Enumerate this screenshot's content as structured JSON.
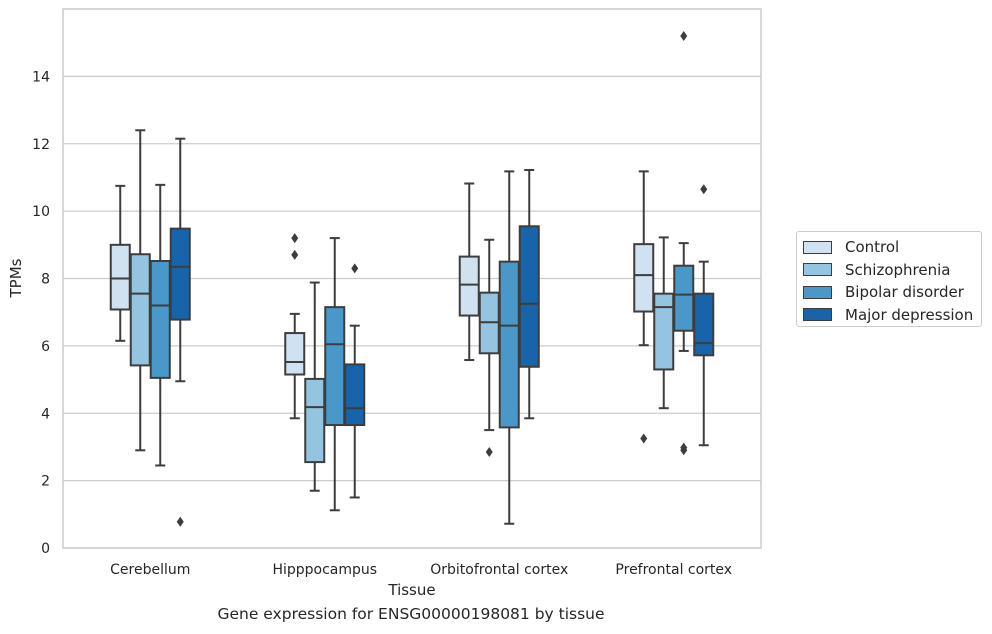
{
  "caption": "Gene expression for ENSG00000198081 by tissue",
  "chart_data": {
    "type": "box",
    "xlabel": "Tissue",
    "ylabel": "TPMs",
    "ylim": [
      0,
      16
    ],
    "yticks": [
      0,
      2,
      4,
      6,
      8,
      10,
      12,
      14
    ],
    "grid": true,
    "legend_position": "right",
    "categories": [
      "Cerebellum",
      "Hipppocampus",
      "Orbitofrontal cortex",
      "Prefrontal cortex"
    ],
    "series": [
      {
        "name": "Control",
        "color": "#d0e1f2",
        "boxes": [
          {
            "whislo": 6.15,
            "q1": 7.08,
            "med": 8.0,
            "q3": 9.0,
            "whishi": 10.75,
            "fliers": []
          },
          {
            "whislo": 3.85,
            "q1": 5.15,
            "med": 5.52,
            "q3": 6.38,
            "whishi": 6.95,
            "fliers": [
              8.7,
              9.2
            ]
          },
          {
            "whislo": 5.58,
            "q1": 6.9,
            "med": 7.82,
            "q3": 8.65,
            "whishi": 10.82,
            "fliers": []
          },
          {
            "whislo": 6.02,
            "q1": 7.02,
            "med": 8.1,
            "q3": 9.02,
            "whishi": 11.18,
            "fliers": [
              3.25
            ]
          }
        ]
      },
      {
        "name": "Schizophrenia",
        "color": "#94c4df",
        "boxes": [
          {
            "whislo": 2.9,
            "q1": 5.42,
            "med": 7.55,
            "q3": 8.72,
            "whishi": 12.4,
            "fliers": []
          },
          {
            "whislo": 1.7,
            "q1": 2.55,
            "med": 4.18,
            "q3": 5.02,
            "whishi": 7.88,
            "fliers": []
          },
          {
            "whislo": 3.5,
            "q1": 5.78,
            "med": 6.7,
            "q3": 7.58,
            "whishi": 9.15,
            "fliers": [
              2.85
            ]
          },
          {
            "whislo": 4.15,
            "q1": 5.3,
            "med": 7.15,
            "q3": 7.55,
            "whishi": 9.22,
            "fliers": []
          }
        ]
      },
      {
        "name": "Bipolar disorder",
        "color": "#4a98c9",
        "boxes": [
          {
            "whislo": 2.45,
            "q1": 5.05,
            "med": 7.2,
            "q3": 8.52,
            "whishi": 10.78,
            "fliers": []
          },
          {
            "whislo": 1.12,
            "q1": 3.65,
            "med": 6.05,
            "q3": 7.15,
            "whishi": 9.2,
            "fliers": []
          },
          {
            "whislo": 0.72,
            "q1": 3.58,
            "med": 6.6,
            "q3": 8.5,
            "whishi": 11.18,
            "fliers": []
          },
          {
            "whislo": 5.85,
            "q1": 6.45,
            "med": 7.52,
            "q3": 8.38,
            "whishi": 9.05,
            "fliers": [
              2.9,
              2.98,
              15.2
            ]
          }
        ]
      },
      {
        "name": "Major depression",
        "color": "#1764ab",
        "boxes": [
          {
            "whislo": 4.95,
            "q1": 6.78,
            "med": 8.35,
            "q3": 9.48,
            "whishi": 12.15,
            "fliers": [
              0.78
            ]
          },
          {
            "whislo": 1.5,
            "q1": 3.65,
            "med": 4.15,
            "q3": 5.45,
            "whishi": 6.6,
            "fliers": [
              8.3
            ]
          },
          {
            "whislo": 3.85,
            "q1": 5.38,
            "med": 7.25,
            "q3": 9.55,
            "whishi": 11.22,
            "fliers": []
          },
          {
            "whislo": 3.05,
            "q1": 5.72,
            "med": 6.08,
            "q3": 7.55,
            "whishi": 8.5,
            "fliers": [
              10.65
            ]
          }
        ]
      }
    ]
  }
}
